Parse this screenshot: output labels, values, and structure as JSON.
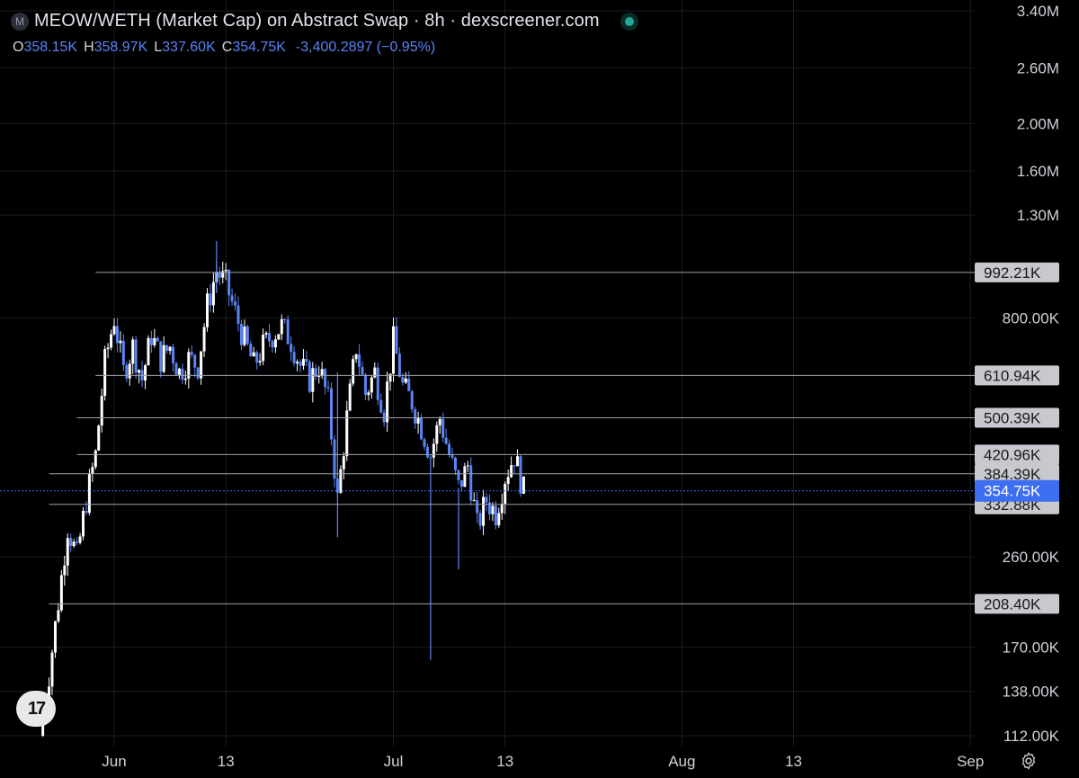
{
  "header": {
    "symbol_badge": "M",
    "title": "MEOW/WETH (Market Cap) on Abstract Swap · 8h · dexscreener.com",
    "o_label": "O",
    "o_value": "358.15K",
    "h_label": "H",
    "h_value": "358.97K",
    "l_label": "L",
    "l_value": "337.60K",
    "c_label": "C",
    "c_value": "354.75K",
    "change": "-3,400.2897 (−0.95%)"
  },
  "colors": {
    "background": "#000000",
    "up_candle": "#ffffff",
    "down_candle": "#5b84f5",
    "level_line": "#9ea1a8",
    "level_tag": "#c7c9ce",
    "current_price_tag": "#3d6ef0",
    "grid": "#1a1c22",
    "axis_text": "#cfd2d8"
  },
  "chart_data": {
    "type": "candlestick",
    "scale": "log",
    "ylim": [
      112000,
      3400000
    ],
    "y_ticks": [
      {
        "value": 3400000,
        "label": "3.40M"
      },
      {
        "value": 2600000,
        "label": "2.60M"
      },
      {
        "value": 2000000,
        "label": "2.00M"
      },
      {
        "value": 1600000,
        "label": "1.60M"
      },
      {
        "value": 1300000,
        "label": "1.30M"
      },
      {
        "value": 800000,
        "label": "800.00K"
      },
      {
        "value": 260000,
        "label": "260.00K"
      },
      {
        "value": 170000,
        "label": "170.00K"
      },
      {
        "value": 138000,
        "label": "138.00K"
      },
      {
        "value": 112000,
        "label": "112.00K"
      }
    ],
    "x_ticks": [
      {
        "date": "2025-06-01",
        "label": "Jun"
      },
      {
        "date": "2025-06-13",
        "label": "13"
      },
      {
        "date": "2025-07-01",
        "label": "Jul"
      },
      {
        "date": "2025-07-13",
        "label": "13"
      },
      {
        "date": "2025-08-01",
        "label": "Aug"
      },
      {
        "date": "2025-08-13",
        "label": "13"
      },
      {
        "date": "2025-09-01",
        "label": "Sep"
      }
    ],
    "horizontal_levels": [
      {
        "value": 992210,
        "label": "992.21K",
        "start_date": "2025-05-30"
      },
      {
        "value": 610940,
        "label": "610.94K",
        "start_date": "2025-05-30"
      },
      {
        "value": 500390,
        "label": "500.39K",
        "start_date": "2025-05-28"
      },
      {
        "value": 420960,
        "label": "420.96K",
        "start_date": "2025-05-28"
      },
      {
        "value": 384390,
        "label": "384.39K",
        "start_date": "2025-05-25"
      },
      {
        "value": 332880,
        "label": "332.88K",
        "start_date": "2025-05-25"
      },
      {
        "value": 208400,
        "label": "208.40K",
        "start_date": "2025-05-25"
      }
    ],
    "current_price": {
      "value": 354750,
      "label": "354.75K"
    },
    "path": [
      [
        "2025-05-24",
        112000
      ],
      [
        "2025-05-25",
        150000
      ],
      [
        "2025-05-26",
        210000
      ],
      [
        "2025-05-27",
        300000
      ],
      [
        "2025-05-28",
        260000
      ],
      [
        "2025-05-29",
        340000
      ],
      [
        "2025-05-30",
        420000
      ],
      [
        "2025-05-31",
        650000
      ],
      [
        "2025-06-01",
        800000
      ],
      [
        "2025-06-02",
        620000
      ],
      [
        "2025-06-03",
        700000
      ],
      [
        "2025-06-04",
        600000
      ],
      [
        "2025-06-05",
        740000
      ],
      [
        "2025-06-06",
        660000
      ],
      [
        "2025-06-07",
        700000
      ],
      [
        "2025-06-08",
        620000
      ],
      [
        "2025-06-09",
        660000
      ],
      [
        "2025-06-10",
        640000
      ],
      [
        "2025-06-11",
        850000
      ],
      [
        "2025-06-12",
        1000000
      ],
      [
        "2025-06-13",
        940000
      ],
      [
        "2025-06-14",
        820000
      ],
      [
        "2025-06-15",
        720000
      ],
      [
        "2025-06-16",
        640000
      ],
      [
        "2025-06-17",
        700000
      ],
      [
        "2025-06-18",
        740000
      ],
      [
        "2025-06-19",
        770000
      ],
      [
        "2025-06-20",
        720000
      ],
      [
        "2025-06-21",
        640000
      ],
      [
        "2025-06-22",
        600000
      ],
      [
        "2025-06-23",
        640000
      ],
      [
        "2025-06-24",
        540000
      ],
      [
        "2025-06-25",
        340000
      ],
      [
        "2025-06-26",
        500000
      ],
      [
        "2025-06-27",
        700000
      ],
      [
        "2025-06-28",
        560000
      ],
      [
        "2025-06-29",
        620000
      ],
      [
        "2025-06-30",
        520000
      ],
      [
        "2025-07-01",
        720000
      ],
      [
        "2025-07-02",
        580000
      ],
      [
        "2025-07-03",
        540000
      ],
      [
        "2025-07-04",
        480000
      ],
      [
        "2025-07-05",
        420000
      ],
      [
        "2025-07-06",
        500000
      ],
      [
        "2025-07-07",
        420000
      ],
      [
        "2025-07-08",
        360000
      ],
      [
        "2025-07-09",
        400000
      ],
      [
        "2025-07-10",
        300000
      ],
      [
        "2025-07-11",
        340000
      ],
      [
        "2025-07-12",
        320000
      ],
      [
        "2025-07-13",
        380000
      ],
      [
        "2025-07-14",
        420000
      ],
      [
        "2025-07-15",
        354750
      ]
    ],
    "wicks": [
      {
        "date": "2025-06-12",
        "high": 1150000,
        "low": 900000
      },
      {
        "date": "2025-06-25",
        "high": 620000,
        "low": 285000
      },
      {
        "date": "2025-07-05",
        "high": 420000,
        "low": 160000
      },
      {
        "date": "2025-07-08",
        "high": 360000,
        "low": 245000
      }
    ]
  },
  "branding": {
    "logo_text": "17"
  },
  "icons": {
    "settings": "gear-icon",
    "live": "live-dot-icon"
  }
}
